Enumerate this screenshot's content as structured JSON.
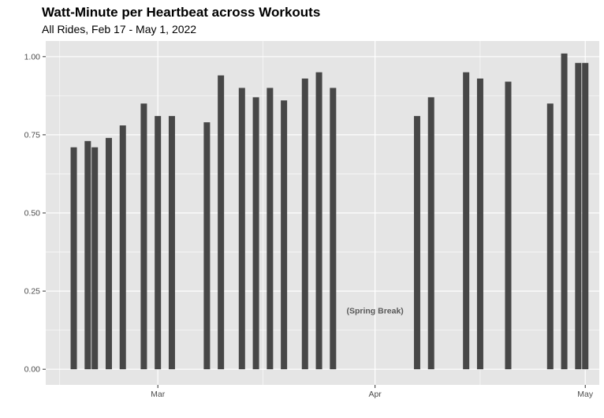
{
  "chart_data": {
    "type": "bar",
    "title": "Watt-Minute per Heartbeat across Workouts",
    "subtitle": "All Rides, Feb 17 - May 1, 2022",
    "xlabel": "",
    "ylabel": "",
    "x_axis": {
      "type": "date",
      "range": [
        "2022-02-13",
        "2022-05-03"
      ],
      "ticks": [
        {
          "date": "2022-03-01",
          "label": "Mar"
        },
        {
          "date": "2022-04-01",
          "label": "Apr"
        },
        {
          "date": "2022-05-01",
          "label": "May"
        }
      ],
      "minor_grid": [
        "2022-02-15",
        "2022-03-16",
        "2022-04-16"
      ]
    },
    "y_axis": {
      "range": [
        -0.05,
        1.05
      ],
      "ticks": [
        0.0,
        0.25,
        0.5,
        0.75,
        1.0
      ],
      "tick_labels": [
        "0.00",
        "0.25",
        "0.50",
        "0.75",
        "1.00"
      ],
      "minor_grid": [
        0.125,
        0.375,
        0.625,
        0.875
      ]
    },
    "grid": true,
    "legend": "none",
    "bar_color": "#474747",
    "panel_background": "#e5e5e5",
    "grid_color": "#ffffff",
    "x": [
      "2022-02-17",
      "2022-02-19",
      "2022-02-20",
      "2022-02-22",
      "2022-02-24",
      "2022-02-27",
      "2022-03-01",
      "2022-03-03",
      "2022-03-08",
      "2022-03-10",
      "2022-03-13",
      "2022-03-15",
      "2022-03-17",
      "2022-03-19",
      "2022-03-22",
      "2022-03-24",
      "2022-03-26",
      "2022-04-07",
      "2022-04-09",
      "2022-04-14",
      "2022-04-16",
      "2022-04-20",
      "2022-04-26",
      "2022-04-28",
      "2022-04-30",
      "2022-05-01"
    ],
    "values": [
      0.71,
      0.73,
      0.71,
      0.74,
      0.78,
      0.85,
      0.81,
      0.81,
      0.79,
      0.94,
      0.9,
      0.87,
      0.9,
      0.86,
      0.93,
      0.95,
      0.9,
      0.81,
      0.87,
      0.95,
      0.93,
      0.92,
      0.85,
      1.01,
      0.98,
      0.98
    ],
    "annotations": [
      {
        "text": "(Spring Break)",
        "x": "2022-04-01",
        "y": 0.188
      }
    ]
  }
}
